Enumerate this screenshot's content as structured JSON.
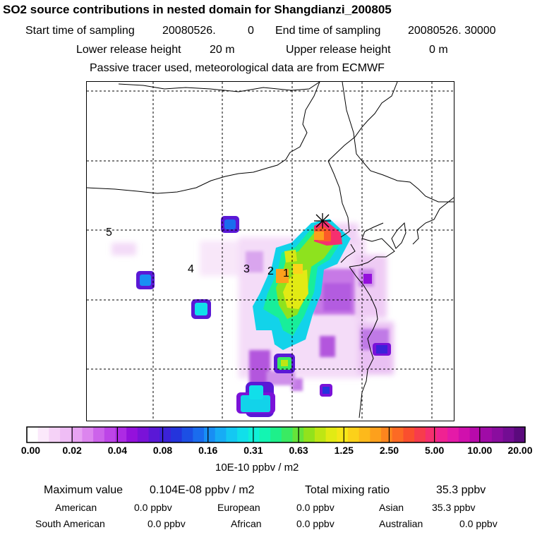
{
  "header": {
    "title": "SO2 source contributions in nested domain for Shangdianzi_200805",
    "start_label": "Start time of sampling",
    "start_value": "20080526.",
    "start_value2": "0",
    "end_label": "End time of sampling",
    "end_value": "20080526. 30000",
    "lower_label": "Lower release height",
    "lower_value": "20 m",
    "upper_label": "Upper release height",
    "upper_value": "0 m",
    "note": "Passive tracer used, meteorological data are from ECMWF"
  },
  "map": {
    "receptor_marker": "asterisk-cross",
    "source_labels": [
      "1",
      "2",
      "3",
      "4",
      "5"
    ]
  },
  "colorbar": {
    "tick_labels": [
      "0.00",
      "0.02",
      "0.04",
      "0.08",
      "0.16",
      "0.31",
      "0.63",
      "1.25",
      "2.50",
      "5.00",
      "10.00",
      "20.00"
    ],
    "colors": [
      "#ffffff",
      "#fbe9fb",
      "#f5d2f7",
      "#efbdf5",
      "#e7a3f2",
      "#dc85ee",
      "#cc63ea",
      "#bd45e7",
      "#ad2ae4",
      "#9411dc",
      "#7a12d8",
      "#5a18d6",
      "#3b22d8",
      "#2434dc",
      "#1c4fe4",
      "#1a6cee",
      "#188ef4",
      "#17acf5",
      "#14c8f2",
      "#11dfea",
      "#10f0d8",
      "#13f5b2",
      "#1ef08a",
      "#3aea62",
      "#65e43a",
      "#92e21c",
      "#bee614",
      "#e2ea14",
      "#f6e618",
      "#fcd11a",
      "#fdb91b",
      "#fda01c",
      "#fd851e",
      "#fc6a24",
      "#fa4f2e",
      "#f73c4c",
      "#f52f6f",
      "#f02292",
      "#e41aa8",
      "#d010ad",
      "#b80aab",
      "#a00ba7",
      "#8a0d9f",
      "#730d93",
      "#5b0a7d"
    ],
    "units": "10E-10 ppbv / m2"
  },
  "stats": {
    "max_label": "Maximum value",
    "max_value": "0.104E-08 ppbv / m2",
    "total_label": "Total mixing ratio",
    "total_value": "35.3 ppbv",
    "regions": [
      {
        "name": "American",
        "value": "0.0 ppbv"
      },
      {
        "name": "European",
        "value": "0.0 ppbv"
      },
      {
        "name": "Asian",
        "value": "35.3 ppbv"
      },
      {
        "name": "South American",
        "value": "0.0 ppbv"
      },
      {
        "name": "African",
        "value": "0.0 ppbv"
      },
      {
        "name": "Australian",
        "value": "0.0 ppbv"
      }
    ]
  }
}
